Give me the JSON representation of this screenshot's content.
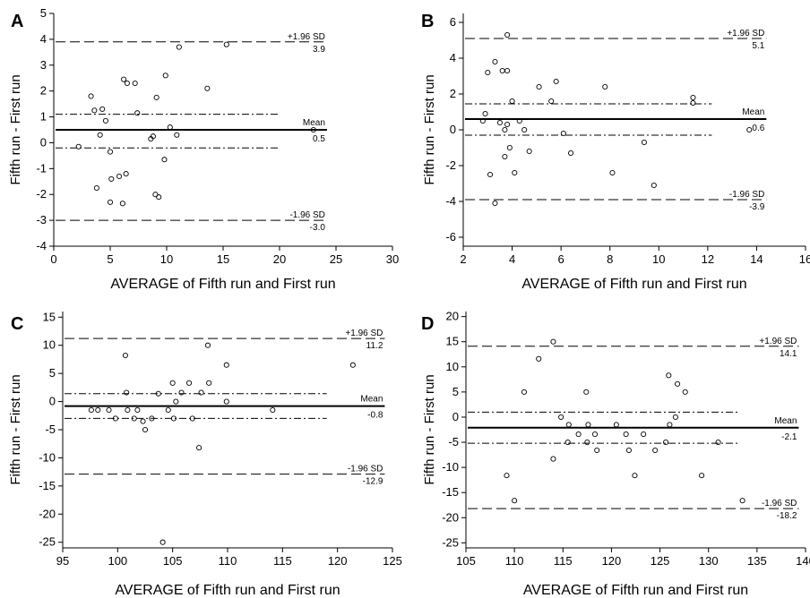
{
  "chart_data": [
    {
      "type": "scatter",
      "panel": "A",
      "xlabel": "AVERAGE of Fifth run and First run",
      "ylabel": "Fifth run - First run",
      "xlim": [
        0,
        30
      ],
      "ylim": [
        -4,
        5
      ],
      "xticks": [
        0,
        5,
        10,
        15,
        20,
        25,
        30
      ],
      "yticks": [
        -4,
        -3,
        -2,
        -1,
        0,
        1,
        2,
        3,
        4,
        5
      ],
      "xline_end": 24.2,
      "mean": 0.5,
      "upper": 3.9,
      "lower": -3.0,
      "ci_upper": 1.1,
      "ci_lower": -0.2,
      "labels": {
        "upper_tag": "+1.96 SD",
        "upper_val": "3.9",
        "mean_tag": "Mean",
        "mean_val": "0.5",
        "lower_tag": "-1.96 SD",
        "lower_val": "-3.0"
      },
      "points": [
        [
          2.2,
          -0.15
        ],
        [
          3.3,
          1.8
        ],
        [
          3.6,
          1.25
        ],
        [
          3.8,
          -1.75
        ],
        [
          4.1,
          0.3
        ],
        [
          4.3,
          1.3
        ],
        [
          4.6,
          0.85
        ],
        [
          5.0,
          -0.35
        ],
        [
          5.1,
          -1.4
        ],
        [
          5.0,
          -2.3
        ],
        [
          5.8,
          -1.3
        ],
        [
          6.1,
          -2.35
        ],
        [
          6.2,
          2.45
        ],
        [
          6.5,
          2.3
        ],
        [
          6.4,
          -1.2
        ],
        [
          7.2,
          2.3
        ],
        [
          7.4,
          1.15
        ],
        [
          8.6,
          0.15
        ],
        [
          8.8,
          0.25
        ],
        [
          9.1,
          1.75
        ],
        [
          9.0,
          -2.0
        ],
        [
          9.3,
          -2.1
        ],
        [
          9.8,
          -0.65
        ],
        [
          9.9,
          2.6
        ],
        [
          10.3,
          0.6
        ],
        [
          10.9,
          0.3
        ],
        [
          11.1,
          3.7
        ],
        [
          13.6,
          2.1
        ],
        [
          15.3,
          3.8
        ],
        [
          23.0,
          0.5
        ]
      ]
    },
    {
      "type": "scatter",
      "panel": "B",
      "xlabel": "AVERAGE of Fifth run and First run",
      "ylabel": "Fifth run - First run",
      "xlim": [
        2,
        16
      ],
      "ylim": [
        -6.5,
        6.5
      ],
      "xticks": [
        2,
        4,
        6,
        8,
        10,
        12,
        14,
        16
      ],
      "yticks": [
        -6,
        -4,
        -2,
        0,
        2,
        4,
        6
      ],
      "xline_end": 14.4,
      "mean": 0.6,
      "upper": 5.1,
      "lower": -3.9,
      "ci_upper": 1.45,
      "ci_lower": -0.3,
      "labels": {
        "upper_tag": "+1.96 SD",
        "upper_val": "5.1",
        "mean_tag": "Mean",
        "mean_val": "0.6",
        "lower_tag": "-1.96 SD",
        "lower_val": "-3.9"
      },
      "points": [
        [
          2.8,
          0.5
        ],
        [
          2.9,
          0.9
        ],
        [
          3.0,
          3.2
        ],
        [
          3.1,
          -2.5
        ],
        [
          3.3,
          3.8
        ],
        [
          3.3,
          -4.1
        ],
        [
          3.5,
          0.4
        ],
        [
          3.6,
          3.3
        ],
        [
          3.7,
          -1.5
        ],
        [
          3.7,
          0.0
        ],
        [
          3.8,
          3.3
        ],
        [
          3.8,
          5.3
        ],
        [
          3.8,
          0.3
        ],
        [
          3.9,
          -1.0
        ],
        [
          4.0,
          1.6
        ],
        [
          4.1,
          -2.4
        ],
        [
          4.3,
          0.5
        ],
        [
          4.5,
          0.0
        ],
        [
          4.7,
          -1.2
        ],
        [
          5.1,
          2.4
        ],
        [
          5.6,
          1.6
        ],
        [
          5.8,
          2.7
        ],
        [
          6.1,
          -0.2
        ],
        [
          6.4,
          -1.3
        ],
        [
          7.8,
          2.4
        ],
        [
          8.1,
          -2.4
        ],
        [
          9.4,
          -0.7
        ],
        [
          9.8,
          -3.1
        ],
        [
          11.4,
          1.8
        ],
        [
          11.4,
          1.5
        ],
        [
          13.7,
          0.0
        ]
      ]
    },
    {
      "type": "scatter",
      "panel": "C",
      "xlabel": "AVERAGE of Fifth run and First run",
      "ylabel": "Fifth run - First run",
      "xlim": [
        95,
        125
      ],
      "ylim": [
        -26,
        16
      ],
      "xticks": [
        95,
        100,
        105,
        110,
        115,
        120,
        125
      ],
      "yticks": [
        -25,
        -20,
        -15,
        -10,
        -5,
        0,
        5,
        10,
        15
      ],
      "xline_end": 124.3,
      "mean": -0.8,
      "upper": 11.2,
      "lower": -12.9,
      "ci_upper": 1.4,
      "ci_lower": -3.0,
      "labels": {
        "upper_tag": "+1.96 SD",
        "upper_val": "11.2",
        "mean_tag": "Mean",
        "mean_val": "-0.8",
        "lower_tag": "-1.96 SD",
        "lower_val": "-12.9"
      },
      "points": [
        [
          97.6,
          -1.5
        ],
        [
          98.2,
          -1.5
        ],
        [
          99.2,
          -1.5
        ],
        [
          99.8,
          -3.0
        ],
        [
          100.7,
          8.2
        ],
        [
          100.8,
          1.6
        ],
        [
          100.9,
          -1.5
        ],
        [
          101.5,
          -3.0
        ],
        [
          101.8,
          -1.5
        ],
        [
          102.3,
          -3.5
        ],
        [
          102.5,
          -5.0
        ],
        [
          103.1,
          -3.0
        ],
        [
          103.7,
          1.4
        ],
        [
          104.1,
          -25.0
        ],
        [
          104.6,
          -1.5
        ],
        [
          105.0,
          3.3
        ],
        [
          105.1,
          -3.0
        ],
        [
          105.3,
          0.0
        ],
        [
          105.8,
          1.6
        ],
        [
          106.5,
          3.3
        ],
        [
          106.8,
          -3.0
        ],
        [
          107.4,
          -8.2
        ],
        [
          107.6,
          1.6
        ],
        [
          108.2,
          10.0
        ],
        [
          108.3,
          3.3
        ],
        [
          109.9,
          6.5
        ],
        [
          109.9,
          0.0
        ],
        [
          114.1,
          -1.5
        ],
        [
          121.4,
          6.5
        ]
      ]
    },
    {
      "type": "scatter",
      "panel": "D",
      "xlabel": "AVERAGE of Fifth run and First run",
      "ylabel": "Fifth run - First run",
      "xlim": [
        105,
        140
      ],
      "ylim": [
        -26,
        21
      ],
      "xticks": [
        105,
        110,
        115,
        120,
        125,
        130,
        135,
        140
      ],
      "yticks": [
        -25,
        -20,
        -15,
        -10,
        -5,
        0,
        5,
        10,
        15,
        20
      ],
      "xline_end": 139.3,
      "mean": -2.1,
      "upper": 14.1,
      "lower": -18.2,
      "ci_upper": 1.0,
      "ci_lower": -5.2,
      "labels": {
        "upper_tag": "+1.96 SD",
        "upper_val": "14.1",
        "mean_tag": "Mean",
        "mean_val": "-2.1",
        "lower_tag": "-1.96 SD",
        "lower_val": "-18.2"
      },
      "points": [
        [
          109.2,
          -11.6
        ],
        [
          110.0,
          -16.6
        ],
        [
          111.0,
          5.0
        ],
        [
          112.5,
          11.6
        ],
        [
          114.0,
          15.0
        ],
        [
          114.0,
          -8.3
        ],
        [
          114.8,
          0.0
        ],
        [
          115.5,
          -5.0
        ],
        [
          115.6,
          -1.5
        ],
        [
          116.6,
          -3.4
        ],
        [
          117.4,
          5.0
        ],
        [
          117.5,
          -5.0
        ],
        [
          117.6,
          -1.5
        ],
        [
          118.3,
          -3.4
        ],
        [
          118.5,
          -6.6
        ],
        [
          120.5,
          -1.5
        ],
        [
          121.5,
          -3.4
        ],
        [
          121.8,
          -6.6
        ],
        [
          122.4,
          -11.6
        ],
        [
          123.3,
          -3.4
        ],
        [
          124.5,
          -6.6
        ],
        [
          125.6,
          -5.0
        ],
        [
          125.9,
          8.3
        ],
        [
          126.0,
          -1.5
        ],
        [
          126.8,
          6.6
        ],
        [
          126.6,
          0.0
        ],
        [
          127.6,
          5.0
        ],
        [
          129.3,
          -11.6
        ],
        [
          131.0,
          -5.0
        ],
        [
          133.5,
          -16.6
        ]
      ]
    }
  ]
}
